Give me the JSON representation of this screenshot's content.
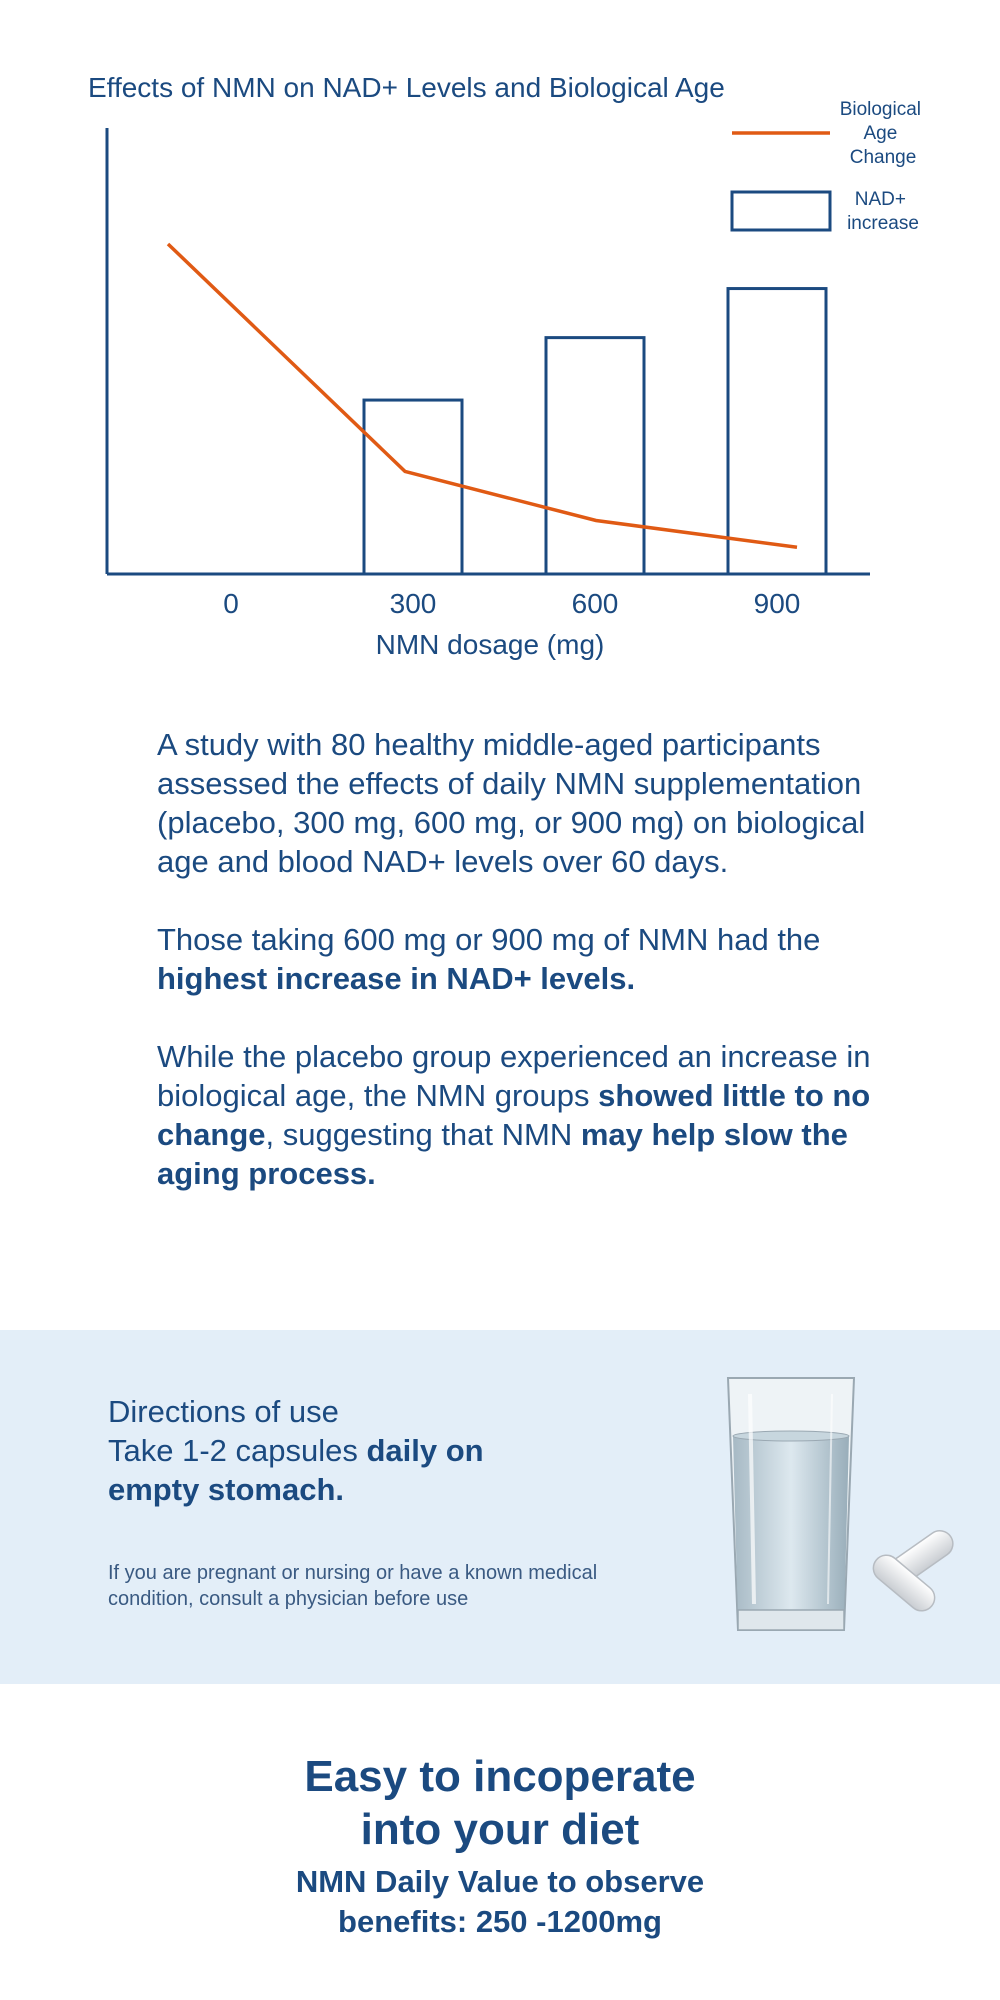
{
  "chart_data": {
    "type": "bar+line",
    "title": "Effects of NMN on NAD+ Levels and Biological Age",
    "xlabel": "NMN dosage (mg)",
    "ylabel": "",
    "categories": [
      "0",
      "300",
      "600",
      "900"
    ],
    "series": [
      {
        "name": "Biological Age Change",
        "type": "line",
        "color": "#e05a14",
        "values": [
          74,
          23,
          12,
          6
        ]
      },
      {
        "name": "NAD+ increase",
        "type": "bar",
        "color": "#1b4a80",
        "values": [
          0,
          39,
          53,
          64
        ]
      }
    ],
    "ylim": [
      0,
      100
    ],
    "grid": false,
    "legend": "top-right"
  },
  "study": {
    "p1": "A study with 80 healthy middle-aged participants assessed the effects of daily NMN supplementation (placebo, 300 mg, 600 mg, or 900 mg) on biological age and blood NAD+ levels over 60 days.",
    "p2_a": "Those taking 600 mg or 900 mg of NMN had the ",
    "p2_b": "highest increase in NAD+ levels.",
    "p3_a": "While the placebo group experienced an increase in biological age, the NMN groups ",
    "p3_b": "showed little to no change",
    "p3_c": ", suggesting that NMN ",
    "p3_d": "may help slow the aging process."
  },
  "directions": {
    "title": "Directions of use",
    "text_a": "Take 1-2 capsules ",
    "text_b": "daily on empty stomach.",
    "note": "If you are pregnant or nursing or have a known medical condition, consult a physician before use"
  },
  "bottom": {
    "headline_1": "Easy to incoperate",
    "headline_2": "into your diet",
    "subline": "NMN Daily Value to observe\nbenefits:  250 -1200mg"
  },
  "colors": {
    "primary": "#1b4a80",
    "accent": "#e05a14",
    "panel_bg": "#e3eef8"
  },
  "icons": {
    "glass": "water-glass-icon",
    "capsules": "capsules-icon"
  }
}
